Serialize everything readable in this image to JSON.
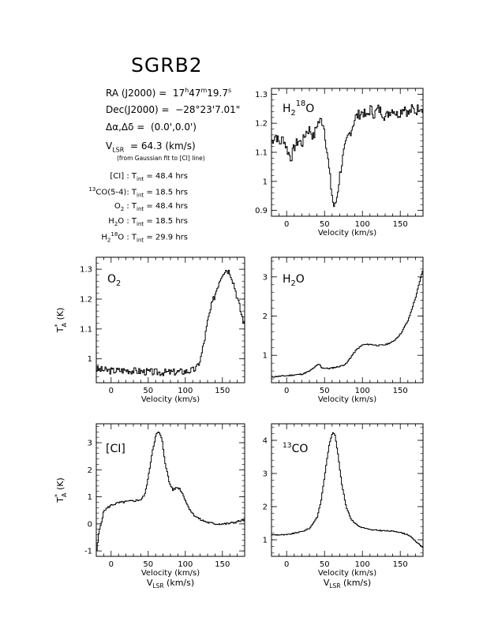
{
  "title": "SGRB2",
  "info": {
    "ra_label": "RA (J2000) =",
    "ra_h": "17",
    "ra_m": "47",
    "ra_s": "19.7",
    "dec_label": "Dec(J2000) =",
    "dec_value": "−28°23'7.01\"",
    "offset_label": "Δα,Δδ =",
    "offset_value": "(0.0',0.0')",
    "vlsr_value": "= 64.3 (km/s)",
    "vlsr_note": "(from Gaussian fit to [CI] line)",
    "observations": [
      {
        "label_html": "[CI] : ",
        "tint": "48.4 hrs"
      },
      {
        "label_html": "13CO(5-4): ",
        "tint": "18.5 hrs"
      },
      {
        "label_html": "O2 : ",
        "tint": "48.4 hrs"
      },
      {
        "label_html": "H2O : ",
        "tint": "18.5 hrs"
      },
      {
        "label_html": "H218O : ",
        "tint": "29.9 hrs"
      }
    ]
  },
  "chart_data": [
    {
      "type": "line",
      "id": "h218o",
      "label": "H218O",
      "xlabel": "Velocity (km/s)",
      "ylabel": "",
      "xlim": [
        -20,
        180
      ],
      "ylim": [
        0.88,
        1.32
      ],
      "xticks": [
        0,
        50,
        100,
        150
      ],
      "yticks": [
        0.9,
        1,
        1.1,
        1.2,
        1.3
      ],
      "knots": [
        [
          -20,
          1.14
        ],
        [
          -15,
          1.16
        ],
        [
          -10,
          1.13
        ],
        [
          -5,
          1.15
        ],
        [
          0,
          1.11
        ],
        [
          5,
          1.08
        ],
        [
          10,
          1.12
        ],
        [
          15,
          1.14
        ],
        [
          20,
          1.13
        ],
        [
          25,
          1.17
        ],
        [
          30,
          1.18
        ],
        [
          35,
          1.15
        ],
        [
          40,
          1.2
        ],
        [
          45,
          1.21
        ],
        [
          48,
          1.2
        ],
        [
          52,
          1.12
        ],
        [
          55,
          1.05
        ],
        [
          58,
          0.98
        ],
        [
          61,
          0.92
        ],
        [
          63,
          0.91
        ],
        [
          66,
          0.95
        ],
        [
          70,
          1.03
        ],
        [
          75,
          1.1
        ],
        [
          80,
          1.15
        ],
        [
          85,
          1.18
        ],
        [
          90,
          1.22
        ],
        [
          95,
          1.23
        ],
        [
          100,
          1.24
        ],
        [
          105,
          1.22
        ],
        [
          110,
          1.25
        ],
        [
          115,
          1.23
        ],
        [
          120,
          1.25
        ],
        [
          125,
          1.24
        ],
        [
          130,
          1.22
        ],
        [
          135,
          1.24
        ],
        [
          140,
          1.25
        ],
        [
          145,
          1.23
        ],
        [
          150,
          1.24
        ],
        [
          155,
          1.26
        ],
        [
          160,
          1.23
        ],
        [
          165,
          1.25
        ],
        [
          170,
          1.24
        ],
        [
          175,
          1.26
        ],
        [
          180,
          1.25
        ]
      ],
      "noise": 0.018,
      "seed": 7
    },
    {
      "type": "line",
      "id": "o2",
      "label": "O2",
      "xlabel": "Velocity (km/s)",
      "ylabel": "T*A (K)",
      "xlim": [
        -20,
        180
      ],
      "ylim": [
        0.92,
        1.34
      ],
      "xticks": [
        0,
        50,
        100,
        150
      ],
      "yticks": [
        1,
        1.1,
        1.2,
        1.3
      ],
      "knots": [
        [
          -20,
          0.965
        ],
        [
          0,
          0.96
        ],
        [
          20,
          0.962
        ],
        [
          40,
          0.958
        ],
        [
          60,
          0.955
        ],
        [
          80,
          0.955
        ],
        [
          100,
          0.958
        ],
        [
          110,
          0.962
        ],
        [
          115,
          0.97
        ],
        [
          120,
          1.0
        ],
        [
          125,
          1.06
        ],
        [
          130,
          1.13
        ],
        [
          135,
          1.18
        ],
        [
          140,
          1.22
        ],
        [
          145,
          1.26
        ],
        [
          150,
          1.29
        ],
        [
          155,
          1.3
        ],
        [
          160,
          1.29
        ],
        [
          165,
          1.25
        ],
        [
          170,
          1.2
        ],
        [
          175,
          1.15
        ],
        [
          180,
          1.11
        ]
      ],
      "noise": 0.012,
      "seed": 3
    },
    {
      "type": "line",
      "id": "h2o",
      "label": "H2O",
      "xlabel": "Velocity (km/s)",
      "ylabel": "",
      "xlim": [
        -20,
        180
      ],
      "ylim": [
        0.3,
        3.5
      ],
      "xticks": [
        0,
        50,
        100,
        150
      ],
      "yticks": [
        1,
        2,
        3
      ],
      "knots": [
        [
          -20,
          0.45
        ],
        [
          0,
          0.48
        ],
        [
          20,
          0.52
        ],
        [
          30,
          0.6
        ],
        [
          38,
          0.72
        ],
        [
          42,
          0.78
        ],
        [
          46,
          0.68
        ],
        [
          55,
          0.66
        ],
        [
          70,
          0.72
        ],
        [
          78,
          0.78
        ],
        [
          85,
          0.98
        ],
        [
          92,
          1.15
        ],
        [
          100,
          1.27
        ],
        [
          110,
          1.28
        ],
        [
          120,
          1.25
        ],
        [
          130,
          1.27
        ],
        [
          140,
          1.35
        ],
        [
          150,
          1.55
        ],
        [
          160,
          1.9
        ],
        [
          170,
          2.5
        ],
        [
          180,
          3.25
        ]
      ],
      "noise": 0.015,
      "seed": 11
    },
    {
      "type": "line",
      "id": "ci",
      "label": "[CI]",
      "xlabel": "Velocity (km/s)",
      "ylabel": "T*A (K)",
      "xlabel2": "VLSR (km/s)",
      "xlim": [
        -20,
        180
      ],
      "ylim": [
        -1.2,
        3.7
      ],
      "xticks": [
        0,
        50,
        100,
        150
      ],
      "yticks": [
        -1,
        0,
        1,
        2,
        3
      ],
      "knots": [
        [
          -20,
          -1.0
        ],
        [
          -17,
          -0.3
        ],
        [
          -10,
          0.5
        ],
        [
          0,
          0.7
        ],
        [
          10,
          0.78
        ],
        [
          20,
          0.82
        ],
        [
          30,
          0.85
        ],
        [
          40,
          0.9
        ],
        [
          45,
          1.1
        ],
        [
          50,
          1.8
        ],
        [
          55,
          2.7
        ],
        [
          60,
          3.3
        ],
        [
          64,
          3.4
        ],
        [
          68,
          3.1
        ],
        [
          72,
          2.3
        ],
        [
          78,
          1.5
        ],
        [
          83,
          1.25
        ],
        [
          88,
          1.35
        ],
        [
          92,
          1.3
        ],
        [
          97,
          1.05
        ],
        [
          102,
          0.7
        ],
        [
          110,
          0.35
        ],
        [
          120,
          0.15
        ],
        [
          130,
          0.05
        ],
        [
          140,
          0.0
        ],
        [
          155,
          0.0
        ],
        [
          165,
          0.05
        ],
        [
          175,
          0.12
        ],
        [
          180,
          0.15
        ]
      ],
      "noise": 0.04,
      "seed": 5
    },
    {
      "type": "line",
      "id": "co13",
      "label": "13CO",
      "xlabel": "Velocity (km/s)",
      "ylabel": "",
      "xlabel2": "VLSR (km/s)",
      "xlim": [
        -20,
        180
      ],
      "ylim": [
        0.5,
        4.5
      ],
      "xticks": [
        0,
        50,
        100,
        150
      ],
      "yticks": [
        1,
        2,
        3,
        4
      ],
      "knots": [
        [
          -20,
          1.15
        ],
        [
          0,
          1.15
        ],
        [
          10,
          1.2
        ],
        [
          20,
          1.25
        ],
        [
          30,
          1.35
        ],
        [
          40,
          1.7
        ],
        [
          45,
          2.2
        ],
        [
          50,
          3.0
        ],
        [
          55,
          3.8
        ],
        [
          60,
          4.25
        ],
        [
          63,
          4.2
        ],
        [
          67,
          3.6
        ],
        [
          72,
          2.7
        ],
        [
          78,
          2.0
        ],
        [
          85,
          1.6
        ],
        [
          95,
          1.4
        ],
        [
          110,
          1.3
        ],
        [
          130,
          1.27
        ],
        [
          145,
          1.25
        ],
        [
          160,
          1.15
        ],
        [
          170,
          0.95
        ],
        [
          180,
          0.75
        ]
      ],
      "noise": 0.015,
      "seed": 9
    }
  ]
}
